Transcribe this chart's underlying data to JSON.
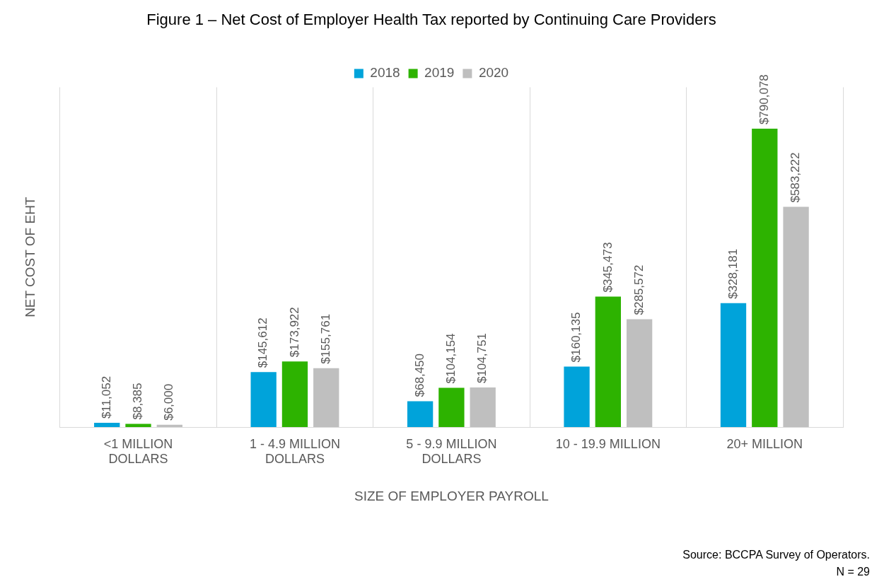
{
  "chart_data": {
    "type": "bar",
    "title": "Figure 1 – Net Cost of Employer Health Tax reported by Continuing Care Providers",
    "xlabel": "SIZE OF EMPLOYER PAYROLL",
    "ylabel": "NET COST OF EHT",
    "categories": [
      "<1 MILLION DOLLARS",
      "1 - 4.9 MILLION DOLLARS",
      "5 - 9.9 MILLION DOLLARS",
      "10 - 19.9 MILLION",
      "20+ MILLION"
    ],
    "series": [
      {
        "name": "2018",
        "color": "#00a3da",
        "values": [
          11052,
          145612,
          68450,
          160135,
          328181
        ],
        "value_labels": [
          "$11,052",
          "$145,612",
          "$68,450",
          "$160,135",
          "$328,181"
        ]
      },
      {
        "name": "2019",
        "color": "#2db300",
        "values": [
          8385,
          173922,
          104154,
          345473,
          790078
        ],
        "value_labels": [
          "$8,385",
          "$173,922",
          "$104,154",
          "$345,473",
          "$790,078"
        ]
      },
      {
        "name": "2020",
        "color": "#bfbfbf",
        "values": [
          6000,
          155761,
          104751,
          285572,
          583222
        ],
        "value_labels": [
          "$6,000",
          "$155,761",
          "$104,751",
          "$285,572",
          "$583,222"
        ]
      }
    ],
    "tick_labels": "x",
    "grid": "x",
    "legend": "top",
    "annotations": [
      "Source: BCCPA Survey of Operators.",
      "N = 29"
    ]
  }
}
